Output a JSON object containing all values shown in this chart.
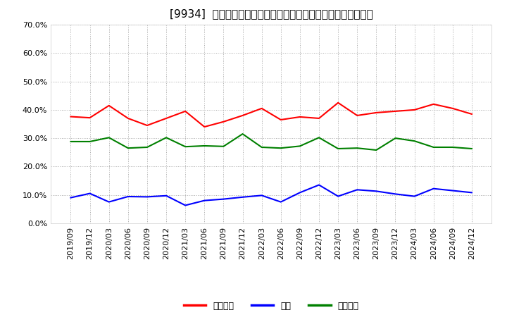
{
  "title": "[9934]  売上債権、在庫、買入債務の総資産に対する比率の推移",
  "x_labels": [
    "2019/09",
    "2019/12",
    "2020/03",
    "2020/06",
    "2020/09",
    "2020/12",
    "2021/03",
    "2021/06",
    "2021/09",
    "2021/12",
    "2022/03",
    "2022/06",
    "2022/09",
    "2022/12",
    "2023/03",
    "2023/06",
    "2023/09",
    "2023/12",
    "2024/03",
    "2024/06",
    "2024/09",
    "2024/12"
  ],
  "series": {
    "売上債権": {
      "color": "#ff0000",
      "values": [
        0.376,
        0.372,
        0.415,
        0.37,
        0.345,
        0.37,
        0.395,
        0.34,
        0.358,
        0.38,
        0.405,
        0.365,
        0.375,
        0.37,
        0.425,
        0.38,
        0.39,
        0.395,
        0.4,
        0.42,
        0.405,
        0.385
      ]
    },
    "在庫": {
      "color": "#0000ff",
      "values": [
        0.09,
        0.105,
        0.075,
        0.094,
        0.093,
        0.097,
        0.063,
        0.08,
        0.085,
        0.092,
        0.098,
        0.075,
        0.108,
        0.135,
        0.095,
        0.118,
        0.113,
        0.103,
        0.095,
        0.122,
        0.115,
        0.108
      ]
    },
    "買入債務": {
      "color": "#008000",
      "values": [
        0.288,
        0.288,
        0.302,
        0.265,
        0.268,
        0.302,
        0.27,
        0.273,
        0.271,
        0.315,
        0.268,
        0.265,
        0.272,
        0.302,
        0.263,
        0.265,
        0.258,
        0.3,
        0.29,
        0.268,
        0.268,
        0.263
      ]
    }
  },
  "ylim": [
    0.0,
    0.7
  ],
  "yticks": [
    0.0,
    0.1,
    0.2,
    0.3,
    0.4,
    0.5,
    0.6,
    0.7
  ],
  "ytick_labels": [
    "0.0%",
    "10.0%",
    "20.0%",
    "30.0%",
    "40.0%",
    "50.0%",
    "60.0%",
    "70.0%"
  ],
  "background_color": "#ffffff",
  "plot_bg_color": "#ffffff",
  "grid_color": "#aaaaaa",
  "legend_labels": [
    "売上債権",
    "在庫",
    "買入債務"
  ],
  "legend_colors": [
    "#ff0000",
    "#0000ff",
    "#008000"
  ],
  "title_fontsize": 11,
  "tick_fontsize": 8,
  "legend_fontsize": 9,
  "linewidth": 1.5
}
